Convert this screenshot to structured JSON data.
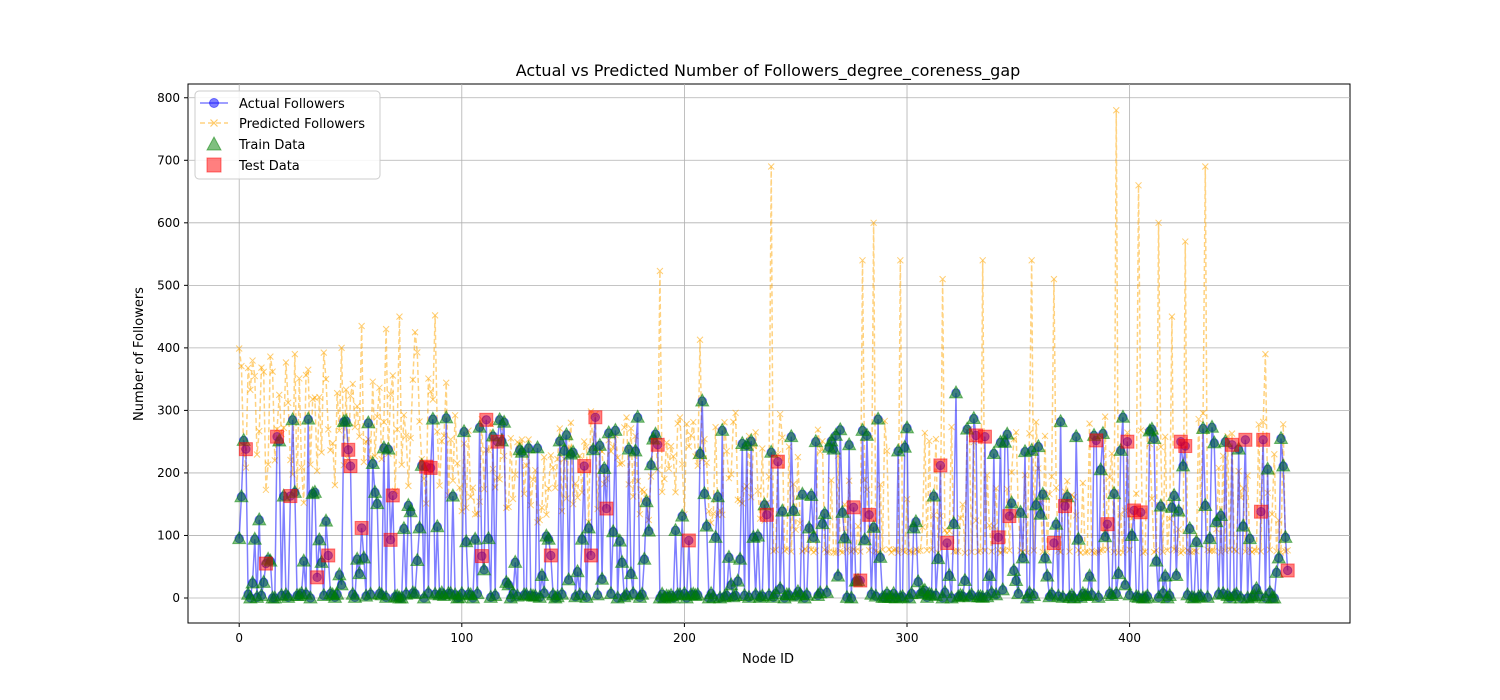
{
  "chart_data": {
    "type": "line",
    "title": "Actual vs Predicted Number of Followers_degree_coreness_gap",
    "xlabel": "Node ID",
    "ylabel": "Number of Followers",
    "xlim": [
      -23,
      499
    ],
    "ylim": [
      -40,
      822
    ],
    "xticks": [
      0,
      100,
      200,
      300,
      400
    ],
    "yticks": [
      0,
      100,
      200,
      300,
      400,
      500,
      600,
      700,
      800
    ],
    "grid": true,
    "legend_position": "top-left",
    "n_points": 472,
    "series": [
      {
        "name": "Actual Followers",
        "color": "#0000ff",
        "style": "line-circle",
        "values_described": "y values per node id 0-471, mostly 0-290 with peaks near 330"
      },
      {
        "name": "Predicted Followers",
        "color": "#ffa500",
        "style": "dashed-x",
        "values_described": "mostly 70-420, spikes up to 780"
      },
      {
        "name": "Train Data",
        "color": "#008000",
        "style": "triangle",
        "values_described": "subset of actual points"
      },
      {
        "name": "Test Data",
        "color": "#ff0000",
        "style": "square",
        "values_described": "subset of actual points"
      }
    ],
    "predicted_spikes": [
      {
        "x": 15,
        "y": 362
      },
      {
        "x": 25,
        "y": 390
      },
      {
        "x": 46,
        "y": 400
      },
      {
        "x": 55,
        "y": 435
      },
      {
        "x": 66,
        "y": 430
      },
      {
        "x": 72,
        "y": 450
      },
      {
        "x": 79,
        "y": 425
      },
      {
        "x": 88,
        "y": 452
      },
      {
        "x": 189,
        "y": 523
      },
      {
        "x": 207,
        "y": 413
      },
      {
        "x": 239,
        "y": 690
      },
      {
        "x": 280,
        "y": 540
      },
      {
        "x": 285,
        "y": 600
      },
      {
        "x": 297,
        "y": 540
      },
      {
        "x": 316,
        "y": 510
      },
      {
        "x": 334,
        "y": 540
      },
      {
        "x": 356,
        "y": 540
      },
      {
        "x": 366,
        "y": 510
      },
      {
        "x": 394,
        "y": 780
      },
      {
        "x": 404,
        "y": 660
      },
      {
        "x": 413,
        "y": 600
      },
      {
        "x": 419,
        "y": 450
      },
      {
        "x": 425,
        "y": 570
      },
      {
        "x": 434,
        "y": 690
      },
      {
        "x": 461,
        "y": 390
      }
    ],
    "test_points": [
      {
        "x": 3,
        "y": 238
      },
      {
        "x": 12,
        "y": 55
      },
      {
        "x": 17,
        "y": 258
      },
      {
        "x": 23,
        "y": 163
      },
      {
        "x": 35,
        "y": 33
      },
      {
        "x": 40,
        "y": 68
      },
      {
        "x": 49,
        "y": 237
      },
      {
        "x": 50,
        "y": 211
      },
      {
        "x": 55,
        "y": 112
      },
      {
        "x": 68,
        "y": 93
      },
      {
        "x": 69,
        "y": 164
      },
      {
        "x": 84,
        "y": 210
      },
      {
        "x": 86,
        "y": 208
      },
      {
        "x": 109,
        "y": 67
      },
      {
        "x": 111,
        "y": 285
      },
      {
        "x": 116,
        "y": 250
      },
      {
        "x": 140,
        "y": 68
      },
      {
        "x": 155,
        "y": 211
      },
      {
        "x": 158,
        "y": 68
      },
      {
        "x": 160,
        "y": 289
      },
      {
        "x": 165,
        "y": 143
      },
      {
        "x": 188,
        "y": 245
      },
      {
        "x": 202,
        "y": 92
      },
      {
        "x": 237,
        "y": 133
      },
      {
        "x": 242,
        "y": 218
      },
      {
        "x": 276,
        "y": 145
      },
      {
        "x": 279,
        "y": 28
      },
      {
        "x": 283,
        "y": 133
      },
      {
        "x": 315,
        "y": 212
      },
      {
        "x": 318,
        "y": 88
      },
      {
        "x": 331,
        "y": 260
      },
      {
        "x": 335,
        "y": 258
      },
      {
        "x": 341,
        "y": 97
      },
      {
        "x": 346,
        "y": 131
      },
      {
        "x": 366,
        "y": 88
      },
      {
        "x": 371,
        "y": 147
      },
      {
        "x": 385,
        "y": 252
      },
      {
        "x": 390,
        "y": 118
      },
      {
        "x": 399,
        "y": 250
      },
      {
        "x": 402,
        "y": 140
      },
      {
        "x": 405,
        "y": 137
      },
      {
        "x": 423,
        "y": 250
      },
      {
        "x": 425,
        "y": 243
      },
      {
        "x": 446,
        "y": 245
      },
      {
        "x": 452,
        "y": 253
      },
      {
        "x": 459,
        "y": 138
      },
      {
        "x": 460,
        "y": 253
      },
      {
        "x": 471,
        "y": 44
      }
    ]
  },
  "legend": [
    {
      "label": "Actual Followers",
      "marker": "circle-line",
      "color": "#0000ff"
    },
    {
      "label": "Predicted Followers",
      "marker": "x-dashed",
      "color": "#ffa500"
    },
    {
      "label": "Train Data",
      "marker": "triangle",
      "color": "#008000"
    },
    {
      "label": "Test Data",
      "marker": "square",
      "color": "#ff0000"
    }
  ],
  "colors": {
    "actual": "#0000ff",
    "predicted": "#ffa500",
    "train": "#008000",
    "test": "#ff0000",
    "grid": "#b0b0b0"
  }
}
